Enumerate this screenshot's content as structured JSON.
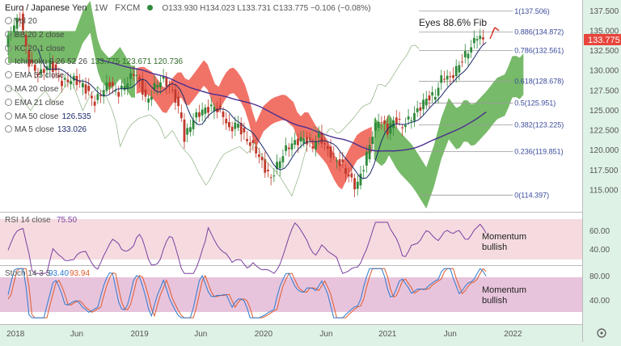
{
  "header": {
    "symbol": "Euro / Japanese Yen",
    "interval": "1W",
    "exchange": "FXCM",
    "ohlc": "O133.930 H134.023 L133.731 C133.775 −0.106 (−0.08%)"
  },
  "legend": [
    {
      "label": "Vol 20",
      "value": ""
    },
    {
      "label": "BB 20 2 close",
      "value": ""
    },
    {
      "label": "KC 20 1 close",
      "value": ""
    },
    {
      "label": "Ichimoku 9 26 52 26",
      "value": "133.775 123.671 120.736"
    },
    {
      "label": "EMA 55 close",
      "value": ""
    },
    {
      "label": "MA 20 close",
      "value": ""
    },
    {
      "label": "EMA 21 close",
      "value": ""
    },
    {
      "label": "MA 50 close",
      "value": "126.535"
    },
    {
      "label": "MA 5 close",
      "value": "133.026"
    }
  ],
  "annotation": "Eyes 88.6% Fib",
  "price_tag": "133.775",
  "rsi": {
    "label": "RSI 14 close",
    "value": "75.50",
    "note_line1": "Momentum",
    "note_line2": "bullish",
    "ticks": [
      "60.00",
      "40.00"
    ]
  },
  "stoch": {
    "label": "Stoch 14 3 3",
    "k": "93.40",
    "d": "93.94",
    "note_line1": "Momentum",
    "note_line2": "bullish",
    "ticks": [
      "80.00",
      "40.00"
    ]
  },
  "colors": {
    "up": "#2f8a3a",
    "down": "#c0392b",
    "ma50": "#4b2f8f",
    "ma5": "#1b2a6b",
    "cloud_bull": "#5fae4f",
    "cloud_bear": "#ee5b4e",
    "rsi": "#7b3fa0",
    "k": "#2a7ad1",
    "d": "#e05a2b",
    "tag": "#e8453c"
  },
  "chart_data": {
    "type": "candlestick",
    "title": "Euro / Japanese Yen, 1W, FXCM",
    "x_ticks": [
      "2018",
      "Jun",
      "2019",
      "Jun",
      "2020",
      "Jun",
      "2021",
      "Jun",
      "2022"
    ],
    "y_ticks": [
      "137.500",
      "135.000",
      "132.500",
      "130.000",
      "127.500",
      "125.000",
      "122.500",
      "120.000",
      "117.500",
      "115.000"
    ],
    "ylim": [
      112.5,
      138.5
    ],
    "fib_levels": [
      {
        "ratio": "1",
        "price": 137.506,
        "label": "1(137.506)"
      },
      {
        "ratio": "0.886",
        "price": 134.872,
        "label": "0.886(134.872)"
      },
      {
        "ratio": "0.786",
        "price": 132.561,
        "label": "0.786(132.561)"
      },
      {
        "ratio": "0.618",
        "price": 128.678,
        "label": "0.618(128.678)"
      },
      {
        "ratio": "0.5",
        "price": 125.951,
        "label": "0.5(125.951)"
      },
      {
        "ratio": "0.382",
        "price": 123.225,
        "label": "0.382(123.225)"
      },
      {
        "ratio": "0.236",
        "price": 119.851,
        "label": "0.236(119.851)"
      },
      {
        "ratio": "0",
        "price": 114.397,
        "label": "0(114.397)"
      }
    ],
    "price_path": [
      {
        "t": 0.0,
        "p": 133.0
      },
      {
        "t": 0.5,
        "p": 135.5
      },
      {
        "t": 1.0,
        "p": 136.8
      },
      {
        "t": 1.6,
        "p": 131.0
      },
      {
        "t": 2.3,
        "p": 129.5
      },
      {
        "t": 3.0,
        "p": 131.0
      },
      {
        "t": 3.8,
        "p": 128.5
      },
      {
        "t": 4.5,
        "p": 129.0
      },
      {
        "t": 5.2,
        "p": 128.2
      },
      {
        "t": 6.0,
        "p": 126.0
      },
      {
        "t": 6.5,
        "p": 127.5
      },
      {
        "t": 7.0,
        "p": 128.5
      },
      {
        "t": 7.5,
        "p": 127.0
      },
      {
        "t": 8.0,
        "p": 128.2
      },
      {
        "t": 8.7,
        "p": 130.0
      },
      {
        "t": 9.1,
        "p": 128.0
      },
      {
        "t": 9.5,
        "p": 126.0
      },
      {
        "t": 10.0,
        "p": 128.0
      },
      {
        "t": 10.5,
        "p": 129.0
      },
      {
        "t": 11.0,
        "p": 128.0
      },
      {
        "t": 11.4,
        "p": 126.5
      },
      {
        "t": 11.8,
        "p": 124.0
      },
      {
        "t": 12.0,
        "p": 121.5
      },
      {
        "t": 12.6,
        "p": 124.0
      },
      {
        "t": 13.2,
        "p": 125.0
      },
      {
        "t": 14.0,
        "p": 125.5
      },
      {
        "t": 14.6,
        "p": 124.5
      },
      {
        "t": 15.0,
        "p": 122.5
      },
      {
        "t": 15.5,
        "p": 123.5
      },
      {
        "t": 16.1,
        "p": 121.5
      },
      {
        "t": 16.8,
        "p": 120.0
      },
      {
        "t": 17.3,
        "p": 118.0
      },
      {
        "t": 17.8,
        "p": 116.5
      },
      {
        "t": 18.3,
        "p": 118.5
      },
      {
        "t": 18.9,
        "p": 120.5
      },
      {
        "t": 19.4,
        "p": 121.0
      },
      {
        "t": 20.0,
        "p": 121.5
      },
      {
        "t": 20.6,
        "p": 120.5
      },
      {
        "t": 21.0,
        "p": 122.0
      },
      {
        "t": 21.6,
        "p": 120.0
      },
      {
        "t": 22.1,
        "p": 119.0
      },
      {
        "t": 22.6,
        "p": 118.0
      },
      {
        "t": 23.1,
        "p": 116.5
      },
      {
        "t": 23.5,
        "p": 115.3
      },
      {
        "t": 24.0,
        "p": 118.0
      },
      {
        "t": 24.5,
        "p": 121.5
      },
      {
        "t": 25.0,
        "p": 124.0
      },
      {
        "t": 25.6,
        "p": 122.5
      },
      {
        "t": 26.1,
        "p": 124.0
      },
      {
        "t": 26.6,
        "p": 123.0
      },
      {
        "t": 27.1,
        "p": 124.0
      },
      {
        "t": 27.6,
        "p": 125.0
      },
      {
        "t": 28.2,
        "p": 126.5
      },
      {
        "t": 28.8,
        "p": 127.0
      },
      {
        "t": 29.3,
        "p": 129.5
      },
      {
        "t": 29.8,
        "p": 129.0
      },
      {
        "t": 30.3,
        "p": 130.5
      },
      {
        "t": 30.8,
        "p": 132.0
      },
      {
        "t": 31.2,
        "p": 133.0
      },
      {
        "t": 31.6,
        "p": 134.5
      },
      {
        "t": 32.0,
        "p": 133.8
      }
    ]
  }
}
